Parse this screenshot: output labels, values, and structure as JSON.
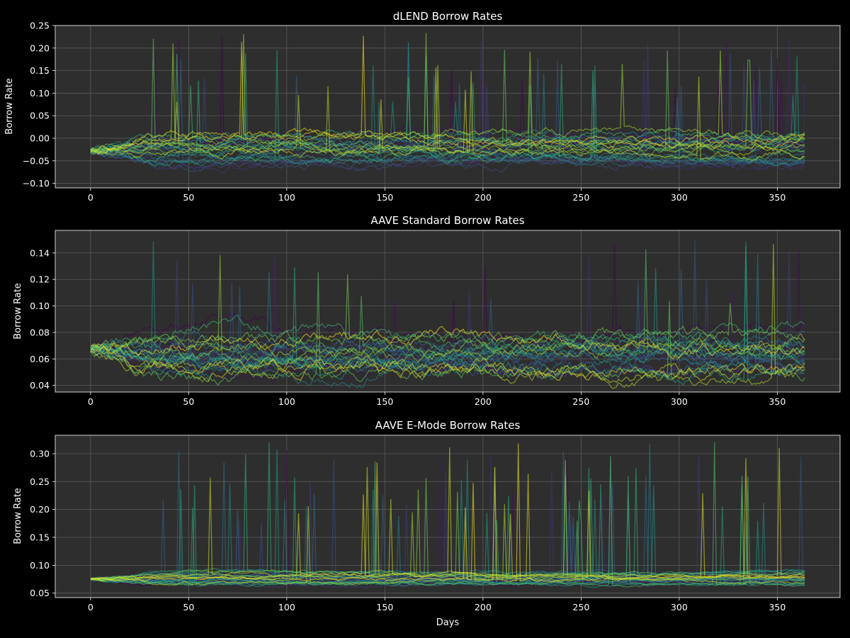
{
  "figure": {
    "background": "#000000",
    "axes_background": "#2e2e2e",
    "grid_color": "#5a5a5a",
    "text_color": "#ffffff"
  },
  "chart_data": [
    {
      "type": "line",
      "title": "dLEND Borrow Rates",
      "xlabel": "",
      "ylabel": "Borrow Rate",
      "xlim": [
        -18,
        382
      ],
      "ylim": [
        -0.11,
        0.25
      ],
      "xticks": [
        0,
        50,
        100,
        150,
        200,
        250,
        300,
        350
      ],
      "yticks": [
        -0.1,
        -0.05,
        0.0,
        0.05,
        0.1,
        0.15,
        0.2,
        0.25
      ],
      "ytick_labels": [
        "−0.10",
        "−0.05",
        "0.00",
        "0.05",
        "0.10",
        "0.15",
        "0.20",
        "0.25"
      ],
      "grid": true,
      "series_count": 30,
      "days": 365,
      "colormap": "viridis",
      "profile": {
        "start": -0.028,
        "band_low": -0.07,
        "band_high": 0.02,
        "spike_max": 0.235
      }
    },
    {
      "type": "line",
      "title": "AAVE Standard Borrow Rates",
      "xlabel": "",
      "ylabel": "Borrow Rate",
      "xlim": [
        -18,
        382
      ],
      "ylim": [
        0.035,
        0.157
      ],
      "xticks": [
        0,
        50,
        100,
        150,
        200,
        250,
        300,
        350
      ],
      "yticks": [
        0.04,
        0.06,
        0.08,
        0.1,
        0.12,
        0.14
      ],
      "ytick_labels": [
        "0.04",
        "0.06",
        "0.08",
        "0.10",
        "0.12",
        "0.14"
      ],
      "grid": true,
      "series_count": 30,
      "days": 365,
      "colormap": "viridis",
      "profile": {
        "start": 0.068,
        "band_low": 0.042,
        "band_high": 0.092,
        "spike_max": 0.152
      }
    },
    {
      "type": "line",
      "title": "AAVE E-Mode Borrow Rates",
      "xlabel": "Days",
      "ylabel": "Borrow Rate",
      "xlim": [
        -18,
        382
      ],
      "ylim": [
        0.042,
        0.333
      ],
      "xticks": [
        0,
        50,
        100,
        150,
        200,
        250,
        300,
        350
      ],
      "yticks": [
        0.05,
        0.1,
        0.15,
        0.2,
        0.25,
        0.3
      ],
      "ytick_labels": [
        "0.05",
        "0.10",
        "0.15",
        "0.20",
        "0.25",
        "0.30"
      ],
      "grid": true,
      "series_count": 30,
      "days": 365,
      "colormap": "viridis",
      "profile": {
        "start": 0.075,
        "band_low": 0.062,
        "band_high": 0.092,
        "spike_max": 0.322
      }
    }
  ]
}
